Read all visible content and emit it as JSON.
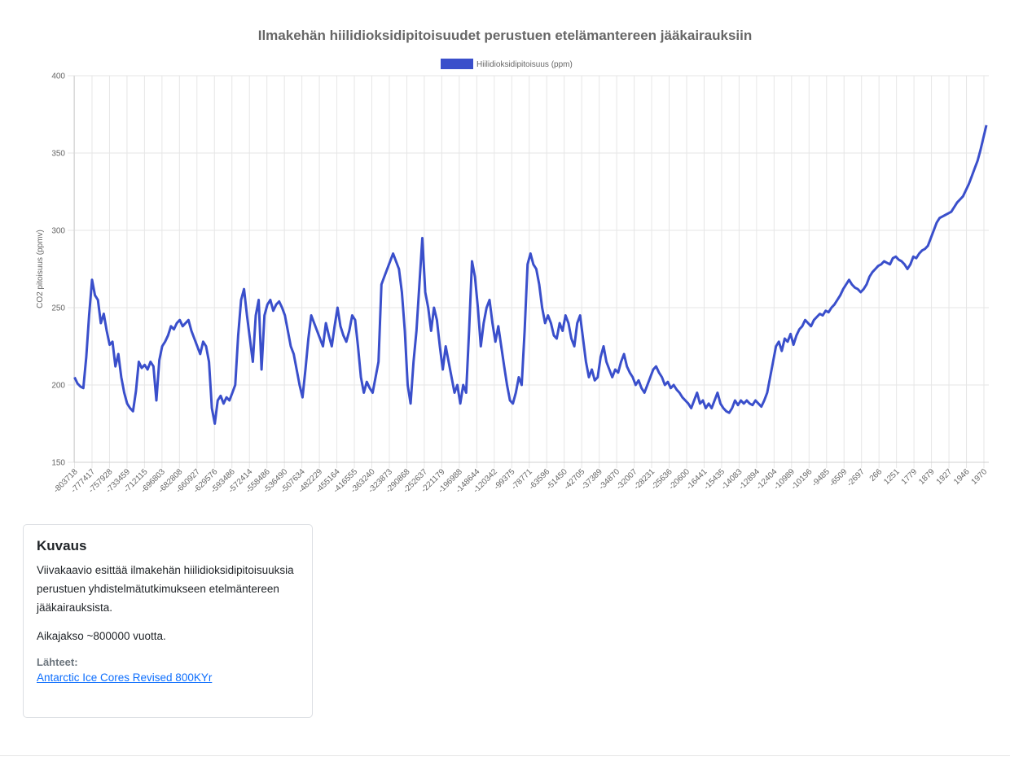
{
  "chart_data": {
    "type": "line",
    "title": "Ilmakehän hiilidioksidipitoisuudet perustuen etelämantereen jääkairauksiin",
    "ylabel": "CO2 pitoisuus (ppmv)",
    "xlabel": "",
    "ylim": [
      150,
      400
    ],
    "yticks": [
      150,
      200,
      250,
      300,
      350,
      400
    ],
    "grid": true,
    "legend_position": "top",
    "series": [
      {
        "name": "Hiilidioksidipitoisuus (ppm)",
        "color": "#3a4fcb",
        "values": [
          205,
          201,
          199,
          198,
          218,
          245,
          268,
          258,
          255,
          240,
          246,
          235,
          226,
          228,
          212,
          220,
          205,
          195,
          188,
          185,
          183,
          196,
          215,
          211,
          213,
          210,
          215,
          212,
          190,
          216,
          225,
          228,
          232,
          238,
          236,
          240,
          242,
          238,
          240,
          242,
          235,
          230,
          225,
          220,
          228,
          225,
          215,
          185,
          175,
          190,
          193,
          188,
          192,
          190,
          195,
          200,
          232,
          255,
          262,
          245,
          230,
          215,
          245,
          255,
          210,
          245,
          252,
          255,
          248,
          252,
          254,
          250,
          245,
          235,
          225,
          220,
          210,
          200,
          192,
          210,
          230,
          245,
          240,
          235,
          230,
          225,
          240,
          232,
          225,
          238,
          250,
          238,
          232,
          228,
          235,
          245,
          242,
          225,
          205,
          195,
          202,
          198,
          195,
          205,
          215,
          265,
          270,
          275,
          280,
          285,
          280,
          275,
          260,
          235,
          200,
          188,
          215,
          235,
          265,
          295,
          260,
          250,
          235,
          250,
          242,
          225,
          210,
          225,
          215,
          205,
          195,
          200,
          188,
          200,
          195,
          235,
          280,
          270,
          250,
          225,
          240,
          250,
          255,
          240,
          228,
          238,
          225,
          212,
          200,
          190,
          188,
          195,
          205,
          200,
          235,
          278,
          285,
          278,
          275,
          265,
          250,
          240,
          245,
          240,
          232,
          230,
          240,
          235,
          245,
          240,
          230,
          225,
          240,
          245,
          230,
          215,
          205,
          210,
          203,
          205,
          218,
          225,
          215,
          210,
          205,
          210,
          208,
          215,
          220,
          212,
          208,
          205,
          200,
          203,
          198,
          195,
          200,
          205,
          210,
          212,
          208,
          205,
          200,
          202,
          198,
          200,
          197,
          195,
          192,
          190,
          188,
          185,
          190,
          195,
          188,
          190,
          185,
          188,
          185,
          190,
          195,
          188,
          185,
          183,
          182,
          185,
          190,
          187,
          190,
          188,
          190,
          188,
          187,
          190,
          188,
          186,
          190,
          195,
          205,
          215,
          225,
          228,
          222,
          230,
          228,
          233,
          226,
          232,
          236,
          238,
          242,
          240,
          238,
          242,
          244,
          246,
          245,
          248,
          247,
          250,
          252,
          255,
          258,
          262,
          265,
          268,
          265,
          263,
          262,
          260,
          262,
          265,
          270,
          273,
          275,
          277,
          278,
          280,
          279,
          278,
          282,
          283,
          281,
          280,
          278,
          275,
          278,
          283,
          282,
          285,
          287,
          288,
          290,
          295,
          300,
          305,
          308,
          309,
          310,
          311,
          312,
          315,
          318,
          320,
          322,
          326,
          330,
          335,
          340,
          345,
          352,
          360,
          368
        ]
      }
    ],
    "x_tick_labels": [
      "-803718",
      "-777417",
      "-757928",
      "-733459",
      "-712115",
      "-696803",
      "-682808",
      "-660927",
      "-629576",
      "-593486",
      "-572414",
      "-558486",
      "-536490",
      "-507634",
      "-482229",
      "-455164",
      "-416555",
      "-363240",
      "-323873",
      "-290868",
      "-252637",
      "-221179",
      "-196988",
      "-148644",
      "-120342",
      "-99375",
      "-78771",
      "-63596",
      "-51450",
      "-42705",
      "-37389",
      "-34870",
      "-32007",
      "-28231",
      "-25636",
      "-20600",
      "-16441",
      "-15435",
      "-14083",
      "-12894",
      "-12404",
      "-10989",
      "-10196",
      "-9485",
      "-6509",
      "-2697",
      "266",
      "1251",
      "1779",
      "1879",
      "1927",
      "1946",
      "1970"
    ]
  },
  "card": {
    "title": "Kuvaus",
    "description": "Viivakaavio esittää ilmakehän hiilidioksidipitoisuuksia perustuen yhdistelmätutkimukseen etelmäntereen jääkairauksista.",
    "period": "Aikajakso ~800000 vuotta.",
    "sources_label": "Lähteet:",
    "source_link": "Antarctic Ice Cores Revised 800KYr"
  }
}
